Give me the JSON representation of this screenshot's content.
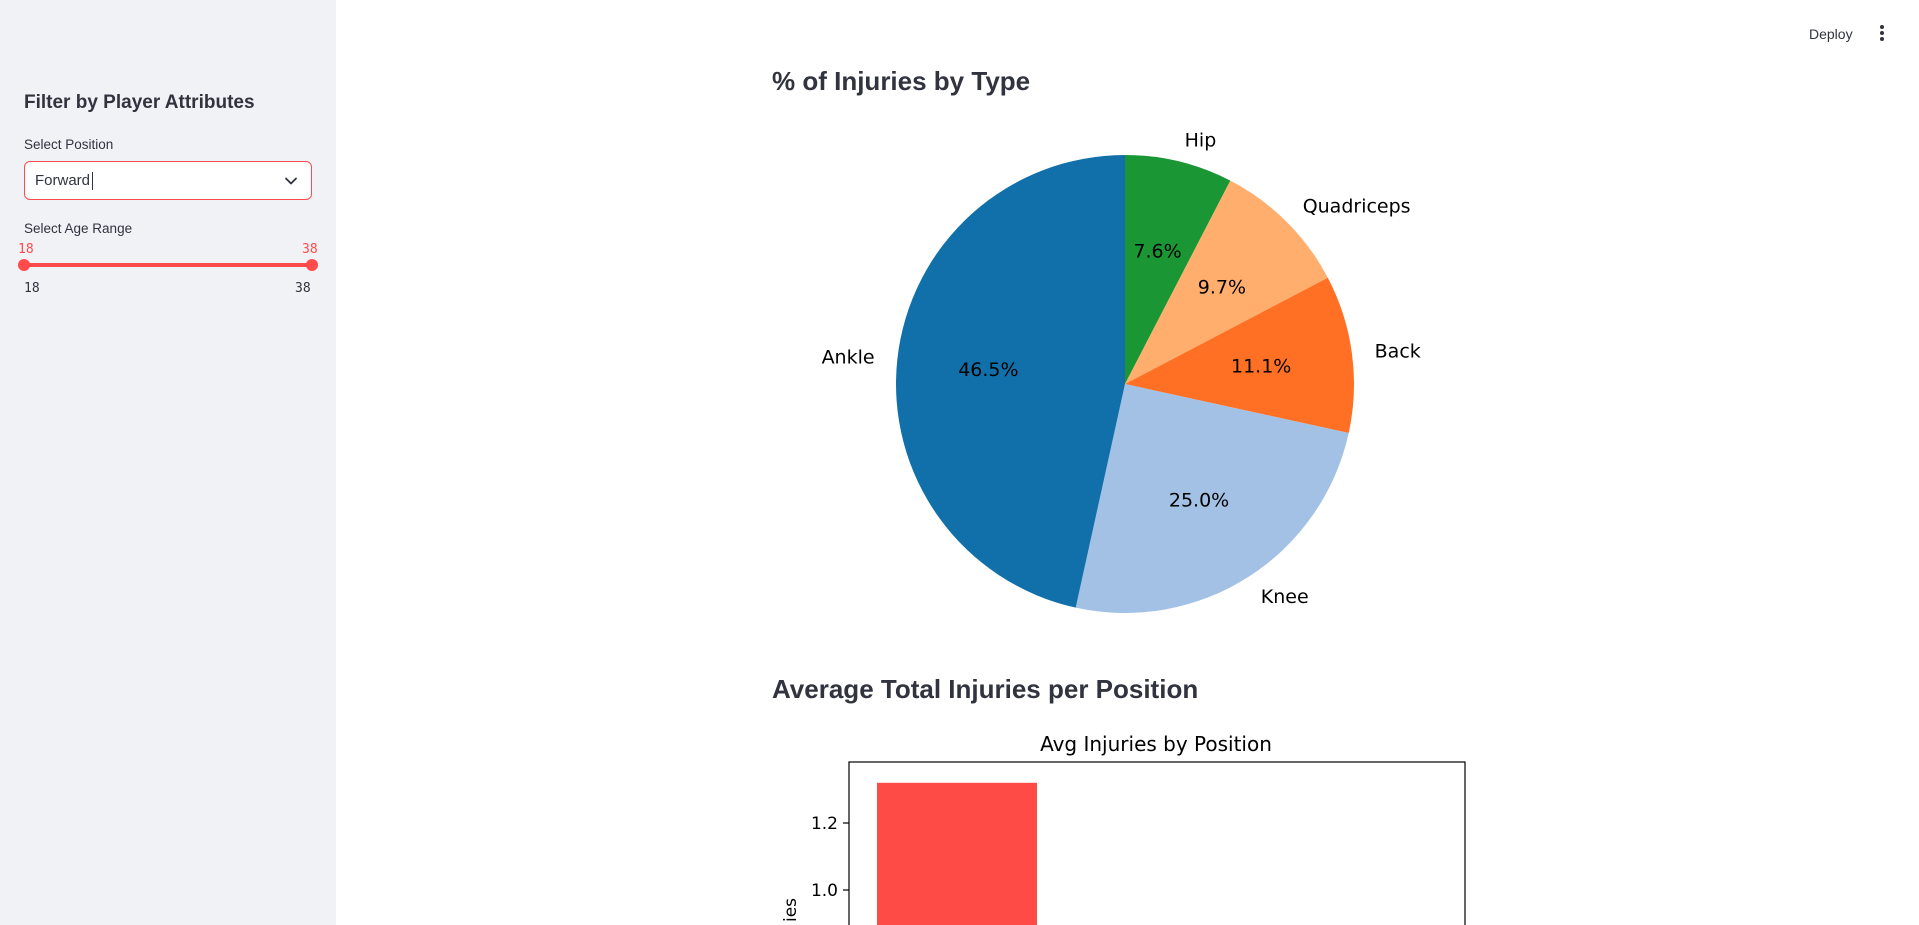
{
  "sidebar": {
    "title": "Filter by Player Attributes",
    "position": {
      "label": "Select Position",
      "value": "Forward"
    },
    "age_range": {
      "label": "Select Age Range",
      "min": 18,
      "max": 38,
      "low": 18,
      "high": 38,
      "low_text": "18",
      "high_text": "38",
      "min_text": "18",
      "max_text": "38"
    }
  },
  "header": {
    "deploy_label": "Deploy",
    "menu_icon": "kebab-menu-icon"
  },
  "colors": {
    "accent": "#ff4b4b",
    "sidebar_bg": "#f0f2f6"
  },
  "sections": {
    "pie_title": "% of Injuries by Type",
    "bar_title": "Average Total Injuries per Position"
  },
  "chart_data": [
    {
      "type": "pie",
      "labels": [
        "Hip",
        "Quadriceps",
        "Back",
        "Knee",
        "Ankle"
      ],
      "values": [
        7.6,
        9.7,
        11.1,
        25.0,
        46.5
      ],
      "value_labels": [
        "7.6%",
        "9.7%",
        "11.1%",
        "25.0%",
        "46.5%"
      ],
      "colors": [
        "#1a9734",
        "#ffae6d",
        "#ff7024",
        "#a2c1e4",
        "#1170aa"
      ],
      "start_angle": 90,
      "direction": "clockwise"
    },
    {
      "type": "bar",
      "title": "Avg Injuries by Position",
      "ylabel": "ies",
      "y_ticks": [
        1.0,
        1.2
      ],
      "y_tick_labels": [
        "1.0",
        "1.2"
      ],
      "values": [
        1.32
      ],
      "bar_color": "#ff4b45"
    }
  ]
}
